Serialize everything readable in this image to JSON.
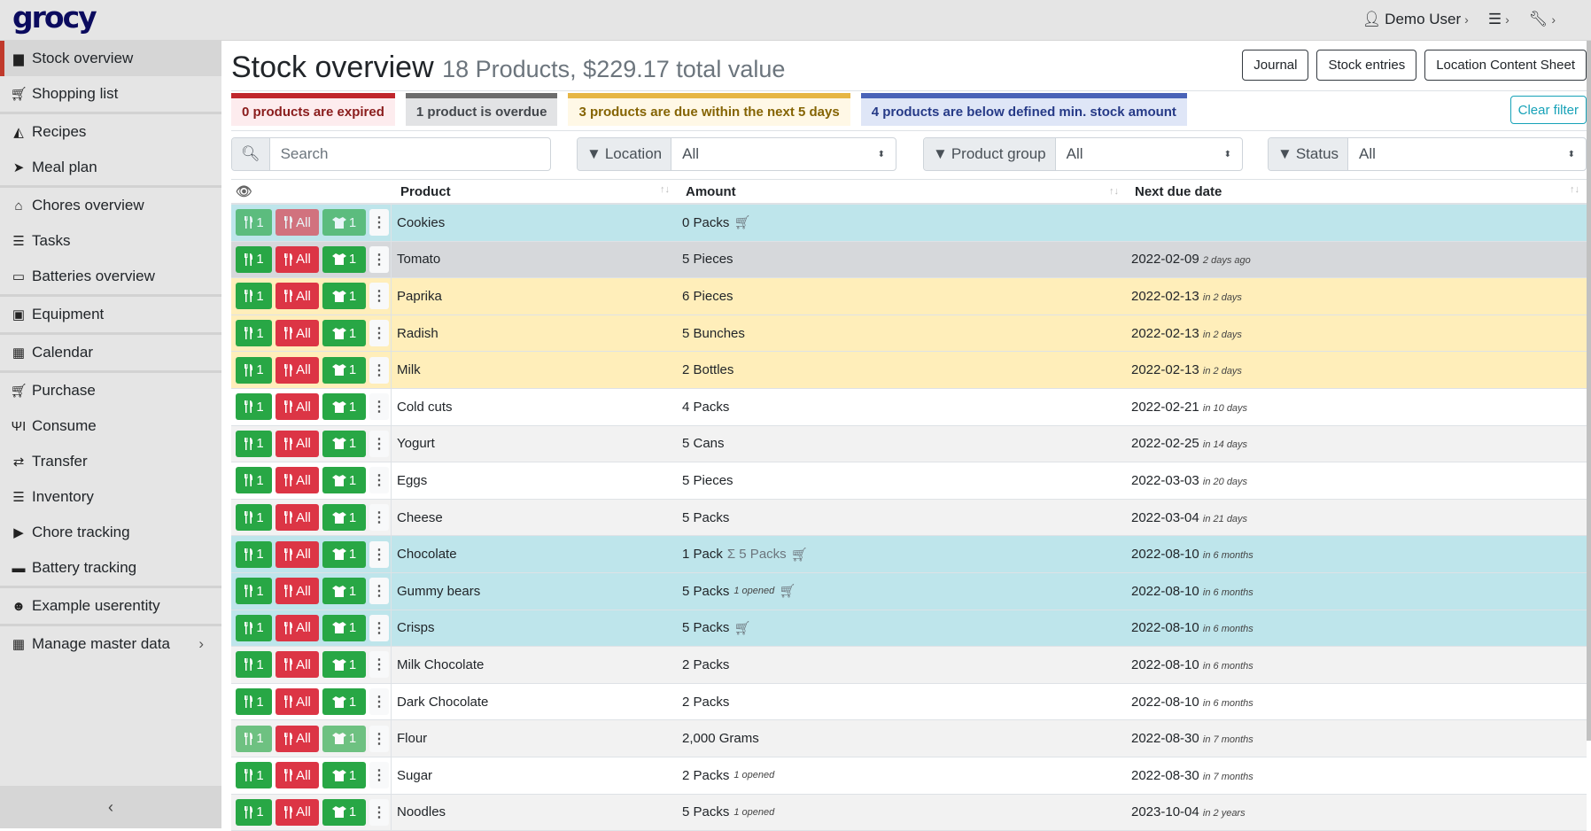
{
  "app": {
    "logo": "grocy",
    "user": "Demo User"
  },
  "sidebar": {
    "items": [
      {
        "label": "Stock overview",
        "icon": "box-icon",
        "active": true
      },
      {
        "label": "Shopping list",
        "icon": "cart-icon"
      },
      {
        "label": "Recipes",
        "icon": "pizza-icon"
      },
      {
        "label": "Meal plan",
        "icon": "paper-plane-icon"
      },
      {
        "label": "Chores overview",
        "icon": "home-icon"
      },
      {
        "label": "Tasks",
        "icon": "tasks-icon"
      },
      {
        "label": "Batteries overview",
        "icon": "battery-icon"
      },
      {
        "label": "Equipment",
        "icon": "toolbox-icon"
      },
      {
        "label": "Calendar",
        "icon": "calendar-icon"
      },
      {
        "label": "Purchase",
        "icon": "cart-plus-icon"
      },
      {
        "label": "Consume",
        "icon": "utensils-icon"
      },
      {
        "label": "Transfer",
        "icon": "exchange-icon"
      },
      {
        "label": "Inventory",
        "icon": "list-icon"
      },
      {
        "label": "Chore tracking",
        "icon": "play-icon"
      },
      {
        "label": "Battery tracking",
        "icon": "car-battery-icon"
      },
      {
        "label": "Example userentity",
        "icon": "smile-icon"
      },
      {
        "label": "Manage master data",
        "icon": "table-icon"
      }
    ],
    "collapse": "‹"
  },
  "header": {
    "title": "Stock overview",
    "subtitle": "18 Products, $229.17 total value",
    "buttons": [
      "Journal",
      "Stock entries",
      "Location Content Sheet"
    ]
  },
  "alerts": [
    {
      "text": "0 products are expired",
      "color": "#c0272d",
      "bg": "#fdecee",
      "fg": "#8a1c1c"
    },
    {
      "text": "1 product is overdue",
      "color": "#6c6c6c",
      "bg": "#e2e3e5",
      "fg": "#43474c"
    },
    {
      "text": "3 products are due within the next 5 days",
      "color": "#e6b645",
      "bg": "#fff8e6",
      "fg": "#856404"
    },
    {
      "text": "4 products are below defined min. stock amount",
      "color": "#4a63b8",
      "bg": "#dfe6f7",
      "fg": "#263a87"
    }
  ],
  "clear_filter": "Clear filter",
  "filters": {
    "search_placeholder": "Search",
    "location_label": "Location",
    "location_value": "All",
    "group_label": "Product group",
    "group_value": "All",
    "status_label": "Status",
    "status_value": "All"
  },
  "table": {
    "headers": {
      "product": "Product",
      "amount": "Amount",
      "due": "Next due date"
    },
    "button_labels": {
      "consume_one": "1",
      "consume_all": "All",
      "open_one": "1"
    },
    "rows": [
      {
        "product": "Cookies",
        "amount": "0 Packs",
        "extra": "",
        "cart": true,
        "due": "",
        "rel": "",
        "status": "info",
        "disabled": true
      },
      {
        "product": "Tomato",
        "amount": "5 Pieces",
        "extra": "",
        "due": "2022-02-09",
        "rel": "2 days ago",
        "status": "sec"
      },
      {
        "product": "Paprika",
        "amount": "6 Pieces",
        "extra": "",
        "due": "2022-02-13",
        "rel": "in 2 days",
        "status": "warn"
      },
      {
        "product": "Radish",
        "amount": "5 Bunches",
        "extra": "",
        "due": "2022-02-13",
        "rel": "in 2 days",
        "status": "warn"
      },
      {
        "product": "Milk",
        "amount": "2 Bottles",
        "extra": "",
        "due": "2022-02-13",
        "rel": "in 2 days",
        "status": "warn"
      },
      {
        "product": "Cold cuts",
        "amount": "4 Packs",
        "extra": "",
        "due": "2022-02-21",
        "rel": "in 10 days",
        "status": "even"
      },
      {
        "product": "Yogurt",
        "amount": "5 Cans",
        "extra": "",
        "due": "2022-02-25",
        "rel": "in 14 days",
        "status": "odd"
      },
      {
        "product": "Eggs",
        "amount": "5 Pieces",
        "extra": "",
        "due": "2022-03-03",
        "rel": "in 20 days",
        "status": "even"
      },
      {
        "product": "Cheese",
        "amount": "5 Packs",
        "extra": "",
        "due": "2022-03-04",
        "rel": "in 21 days",
        "status": "odd"
      },
      {
        "product": "Chocolate",
        "amount": "1 Pack",
        "sum": "Σ 5 Packs",
        "cart": true,
        "due": "2022-08-10",
        "rel": "in 6 months",
        "status": "info"
      },
      {
        "product": "Gummy bears",
        "amount": "5 Packs",
        "extra": "1 opened",
        "cart": true,
        "due": "2022-08-10",
        "rel": "in 6 months",
        "status": "info"
      },
      {
        "product": "Crisps",
        "amount": "5 Packs",
        "extra": "",
        "cart": true,
        "due": "2022-08-10",
        "rel": "in 6 months",
        "status": "info"
      },
      {
        "product": "Milk Chocolate",
        "amount": "2 Packs",
        "extra": "",
        "due": "2022-08-10",
        "rel": "in 6 months",
        "status": "odd"
      },
      {
        "product": "Dark Chocolate",
        "amount": "2 Packs",
        "extra": "",
        "due": "2022-08-10",
        "rel": "in 6 months",
        "status": "even"
      },
      {
        "product": "Flour",
        "amount": "2,000 Grams",
        "extra": "",
        "due": "2022-08-30",
        "rel": "in 7 months",
        "status": "odd",
        "partial": true
      },
      {
        "product": "Sugar",
        "amount": "2 Packs",
        "extra": "1 opened",
        "due": "2022-08-30",
        "rel": "in 7 months",
        "status": "even"
      },
      {
        "product": "Noodles",
        "amount": "5 Packs",
        "extra": "1 opened",
        "due": "2023-10-04",
        "rel": "in 2 years",
        "status": "odd"
      }
    ]
  }
}
